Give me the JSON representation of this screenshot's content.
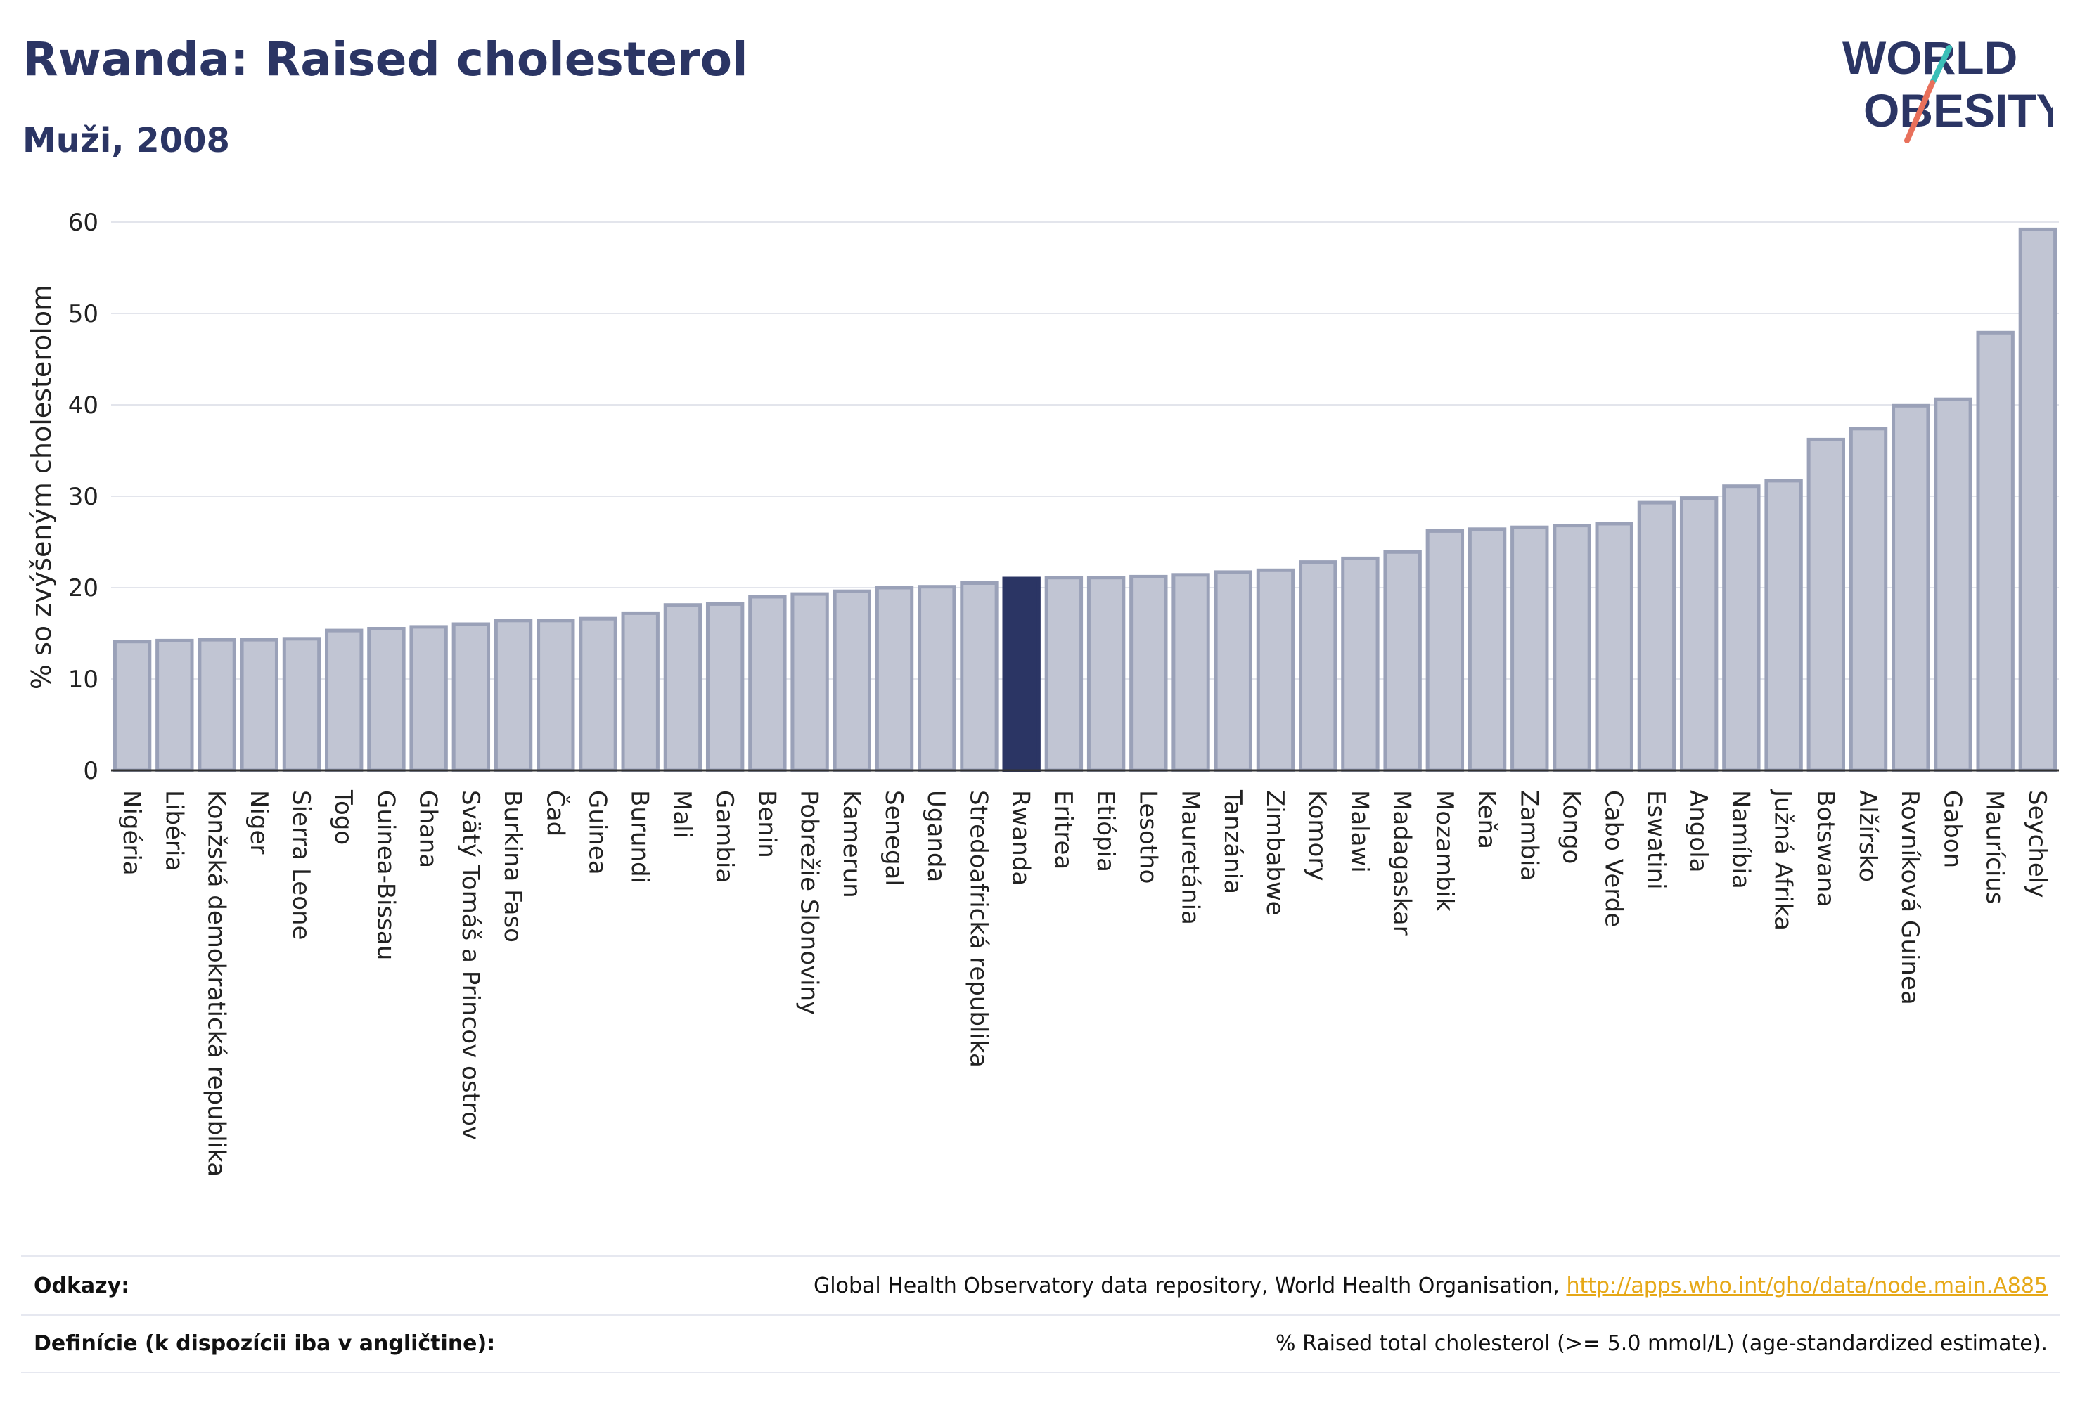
{
  "header": {
    "title": "Rwanda: Raised cholesterol",
    "subtitle": "Muži, 2008"
  },
  "logo": {
    "line1": "WORLD",
    "line2": "OBESITY"
  },
  "colors": {
    "highlight": "#2b3564",
    "bar_fill": "#c1c5d3",
    "bar_stroke": "#9aa1b8",
    "text": "#2b3564"
  },
  "chart_data": {
    "type": "bar",
    "ylabel": "% so zvýšeným cholesterolom",
    "ylim": [
      0,
      62
    ],
    "yticks": [
      0,
      10,
      20,
      30,
      40,
      50,
      60
    ],
    "grid": true,
    "highlight": "Rwanda",
    "categories": [
      "Nigéria",
      "Libéria",
      "Konžská demokratická republika",
      "Niger",
      "Sierra Leone",
      "Togo",
      "Guinea-Bissau",
      "Ghana",
      "Svätý Tomáš a Princov ostrov",
      "Burkina Faso",
      "Čad",
      "Guinea",
      "Burundi",
      "Mali",
      "Gambia",
      "Benin",
      "Pobrežie Slonoviny",
      "Kamerun",
      "Senegal",
      "Uganda",
      "Stredoafrická republika",
      "Rwanda",
      "Eritrea",
      "Etiópia",
      "Lesotho",
      "Mauretánia",
      "Tanzánia",
      "Zimbabwe",
      "Komory",
      "Malawi",
      "Madagaskar",
      "Mozambik",
      "Keňa",
      "Zambia",
      "Kongo",
      "Cabo Verde",
      "Eswatini",
      "Angola",
      "Namíbia",
      "Južná Afrika",
      "Botswana",
      "Alžírsko",
      "Rovníková Guinea",
      "Gabon",
      "Maurícius",
      "Seychely"
    ],
    "values": [
      14.1,
      14.2,
      14.3,
      14.3,
      14.4,
      15.3,
      15.5,
      15.7,
      16.0,
      16.4,
      16.4,
      16.6,
      17.2,
      18.1,
      18.2,
      19.0,
      19.3,
      19.6,
      20.0,
      20.1,
      20.5,
      21.0,
      21.1,
      21.1,
      21.2,
      21.4,
      21.7,
      21.9,
      22.8,
      23.2,
      23.9,
      26.2,
      26.4,
      26.6,
      26.8,
      27.0,
      29.3,
      29.8,
      31.1,
      31.7,
      36.2,
      37.4,
      39.9,
      40.6,
      47.9,
      59.2
    ]
  },
  "footer": {
    "references_label": "Odkazy:",
    "references_text": "Global Health Observatory data repository, World Health Organisation, ",
    "references_link": "http://apps.who.int/gho/data/node.main.A885",
    "definitions_label": "Definície (k dispozícii iba v angličtine):",
    "definitions_text": "% Raised total cholesterol (>= 5.0 mmol/L) (age-standardized estimate)."
  }
}
